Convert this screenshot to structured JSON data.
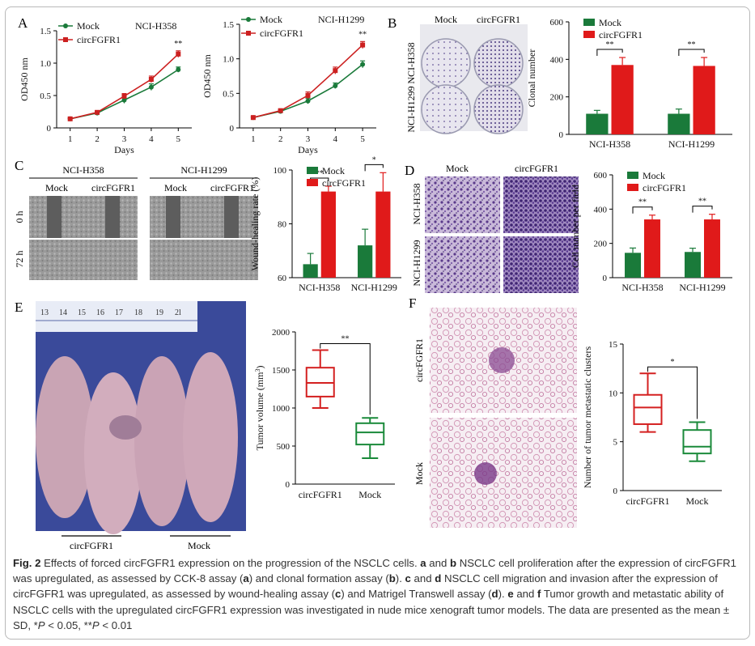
{
  "panels": {
    "A": {
      "letter": "A",
      "charts": [
        {
          "cell_line": "NCI-H358"
        },
        {
          "cell_line": "NCI-H1299"
        }
      ]
    },
    "B": {
      "letter": "B",
      "photo_cols": [
        "Mock",
        "circFGFR1"
      ],
      "photo_rows": [
        "NCI-H358",
        "NCI-H1299"
      ]
    },
    "C": {
      "letter": "C",
      "groups": [
        "NCI-H358",
        "NCI-H1299"
      ],
      "sub": [
        "Mock",
        "circFGFR1"
      ],
      "rows": [
        "0 h",
        "72 h"
      ]
    },
    "D": {
      "letter": "D",
      "photo_cols": [
        "Mock",
        "circFGFR1"
      ],
      "photo_rows": [
        "NCI-H358",
        "NCI-H1299"
      ]
    },
    "E": {
      "letter": "E",
      "ruler": [
        "13",
        "14",
        "15",
        "16",
        "17",
        "18",
        "19",
        "2l"
      ],
      "mice_groups": [
        "circFGFR1",
        "Mock"
      ]
    },
    "F": {
      "letter": "F",
      "photo_rows": [
        "circFGFR1",
        "Mock"
      ]
    }
  },
  "chart_data": [
    {
      "type": "line",
      "panel": "A-left",
      "xlabel": "Days",
      "ylabel": "OD450 nm",
      "x": [
        1,
        2,
        3,
        4,
        5
      ],
      "xlim": [
        0.5,
        5.5
      ],
      "ylim": [
        0,
        1.5
      ],
      "yticks": [
        "0",
        "0.5",
        "1.0",
        "1.5"
      ],
      "series": [
        {
          "name": "Mock",
          "color": "#1a7a3a",
          "marker": "circle",
          "values": [
            0.14,
            0.23,
            0.43,
            0.63,
            0.9
          ],
          "err": [
            0.01,
            0.02,
            0.05,
            0.05,
            0.04
          ]
        },
        {
          "name": "circFGFR1",
          "color": "#cc2020",
          "marker": "square",
          "values": [
            0.14,
            0.24,
            0.49,
            0.75,
            1.14
          ],
          "err": [
            0.01,
            0.02,
            0.04,
            0.05,
            0.05
          ]
        }
      ],
      "legend_title": "NCI-H358",
      "annotations": [
        "**"
      ]
    },
    {
      "type": "line",
      "panel": "A-right",
      "xlabel": "Days",
      "ylabel": "OD450 nm",
      "x": [
        1,
        2,
        3,
        4,
        5
      ],
      "xlim": [
        0.5,
        5.5
      ],
      "ylim": [
        0,
        1.5
      ],
      "yticks": [
        "0",
        "0.5",
        "1.0",
        "1.5"
      ],
      "series": [
        {
          "name": "Mock",
          "color": "#1a7a3a",
          "marker": "circle",
          "values": [
            0.15,
            0.24,
            0.39,
            0.61,
            0.92
          ],
          "err": [
            0.01,
            0.02,
            0.04,
            0.04,
            0.05
          ]
        },
        {
          "name": "circFGFR1",
          "color": "#cc2020",
          "marker": "square",
          "values": [
            0.15,
            0.25,
            0.47,
            0.83,
            1.2
          ],
          "err": [
            0.01,
            0.02,
            0.05,
            0.05,
            0.05
          ]
        }
      ],
      "legend_title": "NCI-H1299",
      "annotations": [
        "**"
      ]
    },
    {
      "type": "bar",
      "panel": "B",
      "ylabel": "Clonal number",
      "categories": [
        "NCI-H358",
        "NCI-H1299"
      ],
      "ylim": [
        0,
        600
      ],
      "yticks": [
        "0",
        "200",
        "400",
        "600"
      ],
      "series": [
        {
          "name": "Mock",
          "color": "#1a7a3a",
          "values": [
            110,
            110
          ],
          "err": [
            18,
            25
          ]
        },
        {
          "name": "circFGFR1",
          "color": "#e01a1a",
          "values": [
            370,
            365
          ],
          "err": [
            40,
            45
          ]
        }
      ],
      "annotations": [
        "**",
        "**"
      ]
    },
    {
      "type": "bar",
      "panel": "C",
      "ylabel": "Wound-healing rate (%)",
      "categories": [
        "NCI-H358",
        "NCI-H1299"
      ],
      "ylim": [
        60,
        100
      ],
      "yticks": [
        "60",
        "80",
        "100"
      ],
      "series": [
        {
          "name": "Mock",
          "color": "#1a7a3a",
          "values": [
            65,
            72
          ],
          "err": [
            4,
            6
          ]
        },
        {
          "name": "circFGFR1",
          "color": "#e01a1a",
          "values": [
            92,
            92
          ],
          "err": [
            2,
            7
          ]
        }
      ],
      "annotations": [
        "**",
        "*"
      ]
    },
    {
      "type": "bar",
      "panel": "D",
      "ylabel": "Cell number per field",
      "categories": [
        "NCI-H358",
        "NCI-H1299"
      ],
      "ylim": [
        0,
        600
      ],
      "yticks": [
        "0",
        "200",
        "400",
        "600"
      ],
      "series": [
        {
          "name": "Mock",
          "color": "#1a7a3a",
          "values": [
            145,
            150
          ],
          "err": [
            28,
            22
          ]
        },
        {
          "name": "circFGFR1",
          "color": "#e01a1a",
          "values": [
            340,
            340
          ],
          "err": [
            25,
            30
          ]
        }
      ],
      "annotations": [
        "**",
        "**"
      ]
    },
    {
      "type": "box",
      "panel": "E",
      "ylabel": "Tumor volume (mm",
      "ylabel_sup": "3",
      "ylabel_end": ")",
      "categories": [
        "circFGFR1",
        "Mock"
      ],
      "ylim": [
        0,
        2000
      ],
      "yticks": [
        "0",
        "500",
        "1000",
        "1500",
        "2000"
      ],
      "boxes": [
        {
          "name": "circFGFR1",
          "color": "#d42020",
          "min": 1000,
          "q1": 1150,
          "median": 1330,
          "q3": 1530,
          "max": 1760
        },
        {
          "name": "Mock",
          "color": "#1a8a3a",
          "min": 340,
          "q1": 520,
          "median": 680,
          "q3": 800,
          "max": 870
        }
      ],
      "annotations": [
        "**"
      ]
    },
    {
      "type": "box",
      "panel": "F",
      "ylabel": "Number of tumor metastatic clusters",
      "categories": [
        "circFGFR1",
        "Mock"
      ],
      "ylim": [
        0,
        15
      ],
      "yticks": [
        "0",
        "5",
        "10",
        "15"
      ],
      "boxes": [
        {
          "name": "circFGFR1",
          "color": "#d42020",
          "min": 6,
          "q1": 6.8,
          "median": 8.5,
          "q3": 9.8,
          "max": 12
        },
        {
          "name": "Mock",
          "color": "#1a8a3a",
          "min": 3,
          "q1": 3.8,
          "median": 4.5,
          "q3": 6.2,
          "max": 7
        }
      ],
      "annotations": [
        "*"
      ]
    }
  ],
  "caption": {
    "label": "Fig. 2",
    "segments": [
      {
        "t": "Effects of forced circFGFR1 expression on the progression of the NSCLC cells. ",
        "s": "n"
      },
      {
        "t": "a",
        "s": "b"
      },
      {
        "t": " and ",
        "s": "n"
      },
      {
        "t": "b",
        "s": "b"
      },
      {
        "t": " NSCLC cell proliferation after the expression of circFGFR1 was upregulated, as assessed by CCK-8 assay (",
        "s": "n"
      },
      {
        "t": "a",
        "s": "b"
      },
      {
        "t": ") and clonal formation assay (",
        "s": "n"
      },
      {
        "t": "b",
        "s": "b"
      },
      {
        "t": "). ",
        "s": "n"
      },
      {
        "t": "c",
        "s": "b"
      },
      {
        "t": " and ",
        "s": "n"
      },
      {
        "t": "d",
        "s": "b"
      },
      {
        "t": " NSCLC cell migration and invasion after the expression of circFGFR1 was upregulated, as assessed by wound-healing assay (",
        "s": "n"
      },
      {
        "t": "c",
        "s": "b"
      },
      {
        "t": ") and Matrigel Transwell assay (",
        "s": "n"
      },
      {
        "t": "d",
        "s": "b"
      },
      {
        "t": "). ",
        "s": "n"
      },
      {
        "t": "e",
        "s": "b"
      },
      {
        "t": " and ",
        "s": "n"
      },
      {
        "t": "f",
        "s": "b"
      },
      {
        "t": " Tumor growth and metastatic ability of NSCLC cells with the upregulated circFGFR1 expression was investigated in nude mice xenograft tumor models. The data are presented as the mean ± SD, *",
        "s": "n"
      },
      {
        "t": "P",
        "s": "i"
      },
      {
        "t": " < 0.05, **",
        "s": "n"
      },
      {
        "t": "P",
        "s": "i"
      },
      {
        "t": " < 0.01",
        "s": "n"
      }
    ]
  }
}
